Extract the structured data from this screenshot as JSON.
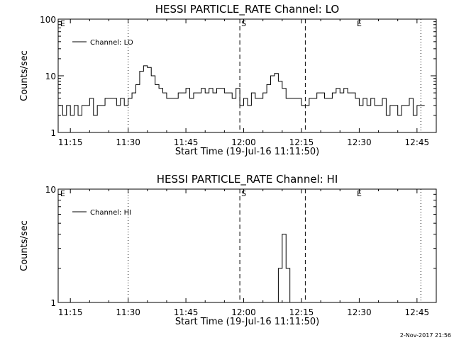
{
  "chart_data": [
    {
      "type": "line",
      "title": "HESSI PARTICLE_RATE Channel: LO",
      "xlabel": "Start Time (19-Jul-16 11:11:50)",
      "ylabel": "Counts/sec",
      "yscale": "log",
      "ylim": [
        1,
        100
      ],
      "xlim": [
        "11:11:50",
        "12:50:00"
      ],
      "x_ticks": [
        "11:15",
        "11:30",
        "11:45",
        "12:00",
        "12:15",
        "12:30",
        "12:45"
      ],
      "y_ticks": [
        "1",
        "10",
        "100"
      ],
      "legend": {
        "entries": [
          "Channel: LO"
        ],
        "placement": "top-left"
      },
      "markers": [
        {
          "time": "11:12",
          "label": "E",
          "style": "none"
        },
        {
          "time": "11:30",
          "label": "",
          "style": "dotted"
        },
        {
          "time": "11:59",
          "label": "S",
          "style": "dashed"
        },
        {
          "time": "12:16",
          "label": "",
          "style": "dashed"
        },
        {
          "time": "12:29",
          "label": "E",
          "style": "none"
        },
        {
          "time": "12:46",
          "label": "",
          "style": "dotted"
        }
      ],
      "series": [
        {
          "name": "Channel: LO",
          "x": [
            "11:12",
            "11:13",
            "11:14",
            "11:15",
            "11:16",
            "11:17",
            "11:18",
            "11:19",
            "11:20",
            "11:21",
            "11:22",
            "11:23",
            "11:24",
            "11:25",
            "11:26",
            "11:27",
            "11:28",
            "11:29",
            "11:30",
            "11:31",
            "11:32",
            "11:33",
            "11:34",
            "11:35",
            "11:36",
            "11:37",
            "11:38",
            "11:39",
            "11:40",
            "11:41",
            "11:42",
            "11:43",
            "11:44",
            "11:45",
            "11:46",
            "11:47",
            "11:48",
            "11:49",
            "11:50",
            "11:51",
            "11:52",
            "11:53",
            "11:54",
            "11:55",
            "11:56",
            "11:57",
            "11:58",
            "11:59",
            "12:00",
            "12:01",
            "12:02",
            "12:03",
            "12:04",
            "12:05",
            "12:06",
            "12:07",
            "12:08",
            "12:09",
            "12:10",
            "12:11",
            "12:12",
            "12:13",
            "12:14",
            "12:15",
            "12:16",
            "12:17",
            "12:18",
            "12:19",
            "12:20",
            "12:21",
            "12:22",
            "12:23",
            "12:24",
            "12:25",
            "12:26",
            "12:27",
            "12:28",
            "12:29",
            "12:30",
            "12:31",
            "12:32",
            "12:33",
            "12:34",
            "12:35",
            "12:36",
            "12:37",
            "12:38",
            "12:39",
            "12:40",
            "12:41",
            "12:42",
            "12:43",
            "12:44",
            "12:45",
            "12:46"
          ],
          "y": [
            3,
            2,
            3,
            2,
            3,
            2,
            3,
            3,
            4,
            2,
            3,
            3,
            4,
            4,
            4,
            3,
            4,
            3,
            4,
            5,
            7,
            12,
            15,
            14,
            10,
            7,
            6,
            5,
            4,
            4,
            4,
            5,
            5,
            6,
            4,
            5,
            5,
            6,
            5,
            6,
            5,
            6,
            6,
            5,
            5,
            4,
            6,
            3,
            4,
            3,
            5,
            4,
            4,
            5,
            7,
            10,
            11,
            8,
            6,
            4,
            4,
            4,
            4,
            3,
            3,
            4,
            4,
            5,
            5,
            4,
            4,
            5,
            6,
            5,
            6,
            5,
            5,
            4,
            3,
            4,
            3,
            4,
            3,
            3,
            4,
            2,
            3,
            3,
            2,
            3,
            3,
            4,
            2,
            3,
            3
          ]
        }
      ]
    },
    {
      "type": "line",
      "title": "HESSI PARTICLE_RATE Channel: HI",
      "xlabel": "Start Time (19-Jul-16 11:11:50)",
      "ylabel": "Counts/sec",
      "yscale": "log",
      "ylim": [
        1,
        10
      ],
      "xlim": [
        "11:11:50",
        "12:50:00"
      ],
      "x_ticks": [
        "11:15",
        "11:30",
        "11:45",
        "12:00",
        "12:15",
        "12:30",
        "12:45"
      ],
      "y_ticks": [
        "1",
        "10"
      ],
      "legend": {
        "entries": [
          "Channel: HI"
        ],
        "placement": "top-left"
      },
      "markers": [
        {
          "time": "11:12",
          "label": "E",
          "style": "none"
        },
        {
          "time": "11:30",
          "label": "",
          "style": "dotted"
        },
        {
          "time": "11:59",
          "label": "S",
          "style": "dashed"
        },
        {
          "time": "12:16",
          "label": "",
          "style": "dashed"
        },
        {
          "time": "12:29",
          "label": "E",
          "style": "none"
        },
        {
          "time": "12:46",
          "label": "",
          "style": "dotted"
        }
      ],
      "series": [
        {
          "name": "Channel: HI",
          "x": [
            "12:08",
            "12:09",
            "12:10",
            "12:11",
            "12:12"
          ],
          "y": [
            1,
            2,
            4,
            2,
            1
          ]
        }
      ]
    }
  ],
  "footer": {
    "timestamp": "2-Nov-2017 21:56"
  }
}
